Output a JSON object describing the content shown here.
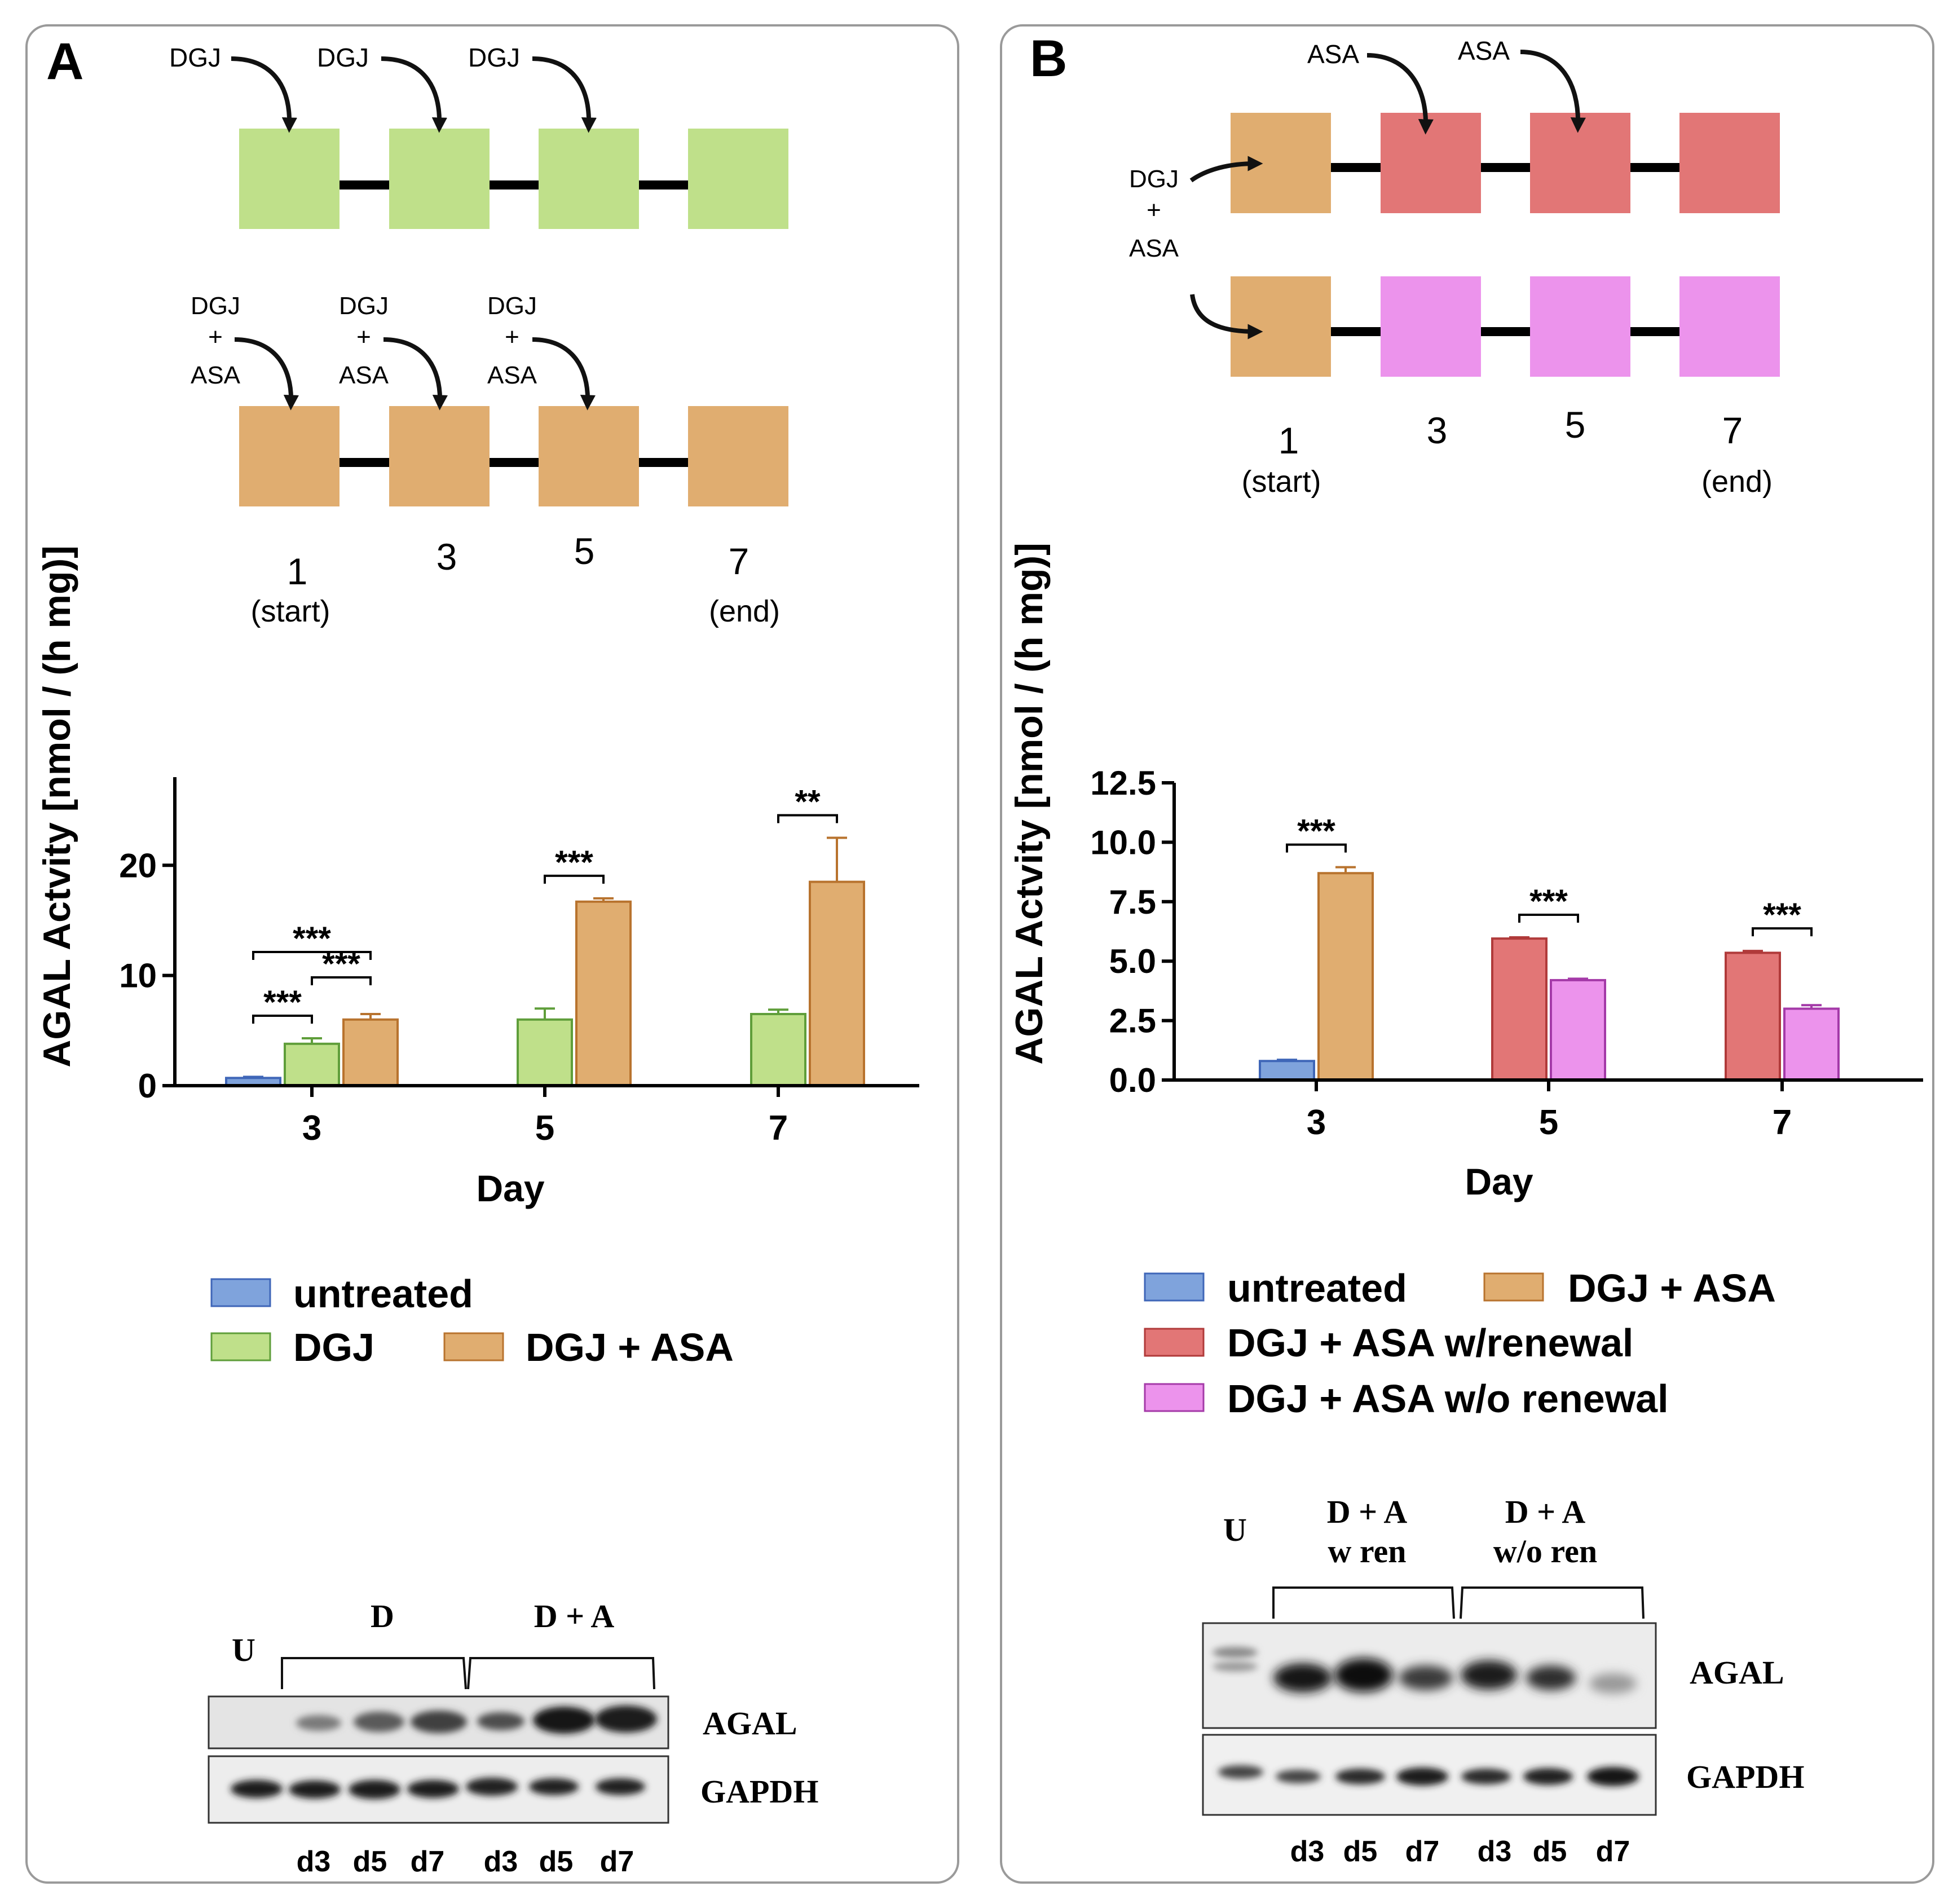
{
  "panel_a": {
    "letter": "A",
    "schema": {
      "top_row_label": "DGJ",
      "combo_label_top": "DGJ",
      "combo_label_plus": "+",
      "combo_label_bottom": "ASA",
      "day_1": "1",
      "day_3": "3",
      "day_5": "5",
      "day_7": "7",
      "start_label": "(start)",
      "end_label": "(end)"
    },
    "legend": {
      "untreated": "untreated",
      "dgj": "DGJ",
      "dgj_asa": "DGJ + ASA"
    },
    "blot": {
      "lane_u": "U",
      "group_d": "D",
      "group_da": "D + A",
      "row_agal": "AGAL",
      "row_gapdh": "GAPDH",
      "lanes": [
        "d3",
        "d5",
        "d7",
        "d3",
        "d5",
        "d7"
      ]
    }
  },
  "panel_b": {
    "letter": "B",
    "schema": {
      "asa_label": "ASA",
      "combo_label_top": "DGJ",
      "combo_label_plus": "+",
      "combo_label_bottom": "ASA",
      "day_1": "1",
      "day_3": "3",
      "day_5": "5",
      "day_7": "7",
      "start_label": "(start)",
      "end_label": "(end)"
    },
    "legend": {
      "untreated": "untreated",
      "dgj_asa": "DGJ + ASA",
      "renewal": "DGJ + ASA w/renewal",
      "no_renewal": "DGJ + ASA w/o renewal"
    },
    "blot": {
      "lane_u": "U",
      "group_wren_1": "D + A",
      "group_wren_2": "w ren",
      "group_woren_1": "D + A",
      "group_woren_2": "w/o ren",
      "row_agal": "AGAL",
      "row_gapdh": "GAPDH",
      "lanes": [
        "d3",
        "d5",
        "d7",
        "d3",
        "d5",
        "d7"
      ]
    }
  },
  "colors": {
    "untreated": "#7fa3dc",
    "dgj": "#bfe08a",
    "dgj_asa": "#e0ad70",
    "renewal": "#e27676",
    "no_renewal": "#ec93ec",
    "stroke_untreated": "#3f66b8",
    "stroke_dgj": "#5f9e3a",
    "stroke_dgj_asa": "#b8732e",
    "stroke_renewal": "#b03a3a",
    "stroke_no_renewal": "#a43aa8"
  },
  "chart_data": [
    {
      "type": "bar",
      "panel": "A",
      "title": "",
      "xlabel": "Day",
      "ylabel": "AGAL Actvity [nmol / (h mg)]",
      "categories": [
        "3",
        "5",
        "7"
      ],
      "ylim": [
        0,
        28
      ],
      "yticks": [
        0,
        10,
        20
      ],
      "ytick_labels": [
        "0",
        "10",
        "20"
      ],
      "series": [
        {
          "name": "untreated",
          "color_key": "untreated",
          "values": [
            0.7,
            null,
            null
          ],
          "errors": [
            0.1,
            null,
            null
          ]
        },
        {
          "name": "DGJ",
          "color_key": "dgj",
          "values": [
            3.8,
            6.0,
            6.5
          ],
          "errors": [
            0.5,
            1.0,
            0.4
          ]
        },
        {
          "name": "DGJ + ASA",
          "color_key": "dgj_asa",
          "values": [
            6.0,
            16.7,
            18.5
          ],
          "errors": [
            0.5,
            0.3,
            4.0
          ]
        }
      ],
      "significance": [
        {
          "label": "***",
          "cat": 0,
          "from": 0,
          "to": 1
        },
        {
          "label": "***",
          "cat": 0,
          "from": 1,
          "to": 2
        },
        {
          "label": "***",
          "cat": 0,
          "from": 0,
          "to": 2
        },
        {
          "label": "***",
          "cat": 1,
          "from": 1,
          "to": 2
        },
        {
          "label": "**",
          "cat": 2,
          "from": 1,
          "to": 2
        }
      ]
    },
    {
      "type": "bar",
      "panel": "B",
      "title": "",
      "xlabel": "Day",
      "ylabel": "AGAL Actvity [nmol / (h mg)]",
      "categories": [
        "3",
        "5",
        "7"
      ],
      "ylim": [
        0,
        12.5
      ],
      "yticks": [
        0,
        2.5,
        5,
        7.5,
        10,
        12.5
      ],
      "ytick_labels": [
        "0.0",
        "2.5",
        "5.0",
        "7.5",
        "10.0",
        "12.5"
      ],
      "series": [
        {
          "name": "untreated",
          "color_key": "untreated",
          "slot": 0,
          "values": [
            0.8,
            null,
            null
          ],
          "errors": [
            0.05,
            null,
            null
          ]
        },
        {
          "name": "DGJ + ASA",
          "color_key": "dgj_asa",
          "slot": 1,
          "values": [
            8.7,
            null,
            null
          ],
          "errors": [
            0.25,
            null,
            null
          ]
        },
        {
          "name": "DGJ + ASA w/renewal",
          "color_key": "renewal",
          "slot": 0,
          "values": [
            null,
            5.95,
            5.35
          ],
          "errors": [
            null,
            0.05,
            0.08
          ]
        },
        {
          "name": "DGJ + ASA w/o renewal",
          "color_key": "no_renewal",
          "slot": 1,
          "values": [
            null,
            4.2,
            3.0
          ],
          "errors": [
            null,
            0.06,
            0.15
          ]
        }
      ],
      "significance": [
        {
          "label": "***",
          "cat": 0,
          "from": 0,
          "to": 1
        },
        {
          "label": "***",
          "cat": 1,
          "from": 0,
          "to": 1
        },
        {
          "label": "***",
          "cat": 2,
          "from": 0,
          "to": 1
        }
      ]
    }
  ]
}
